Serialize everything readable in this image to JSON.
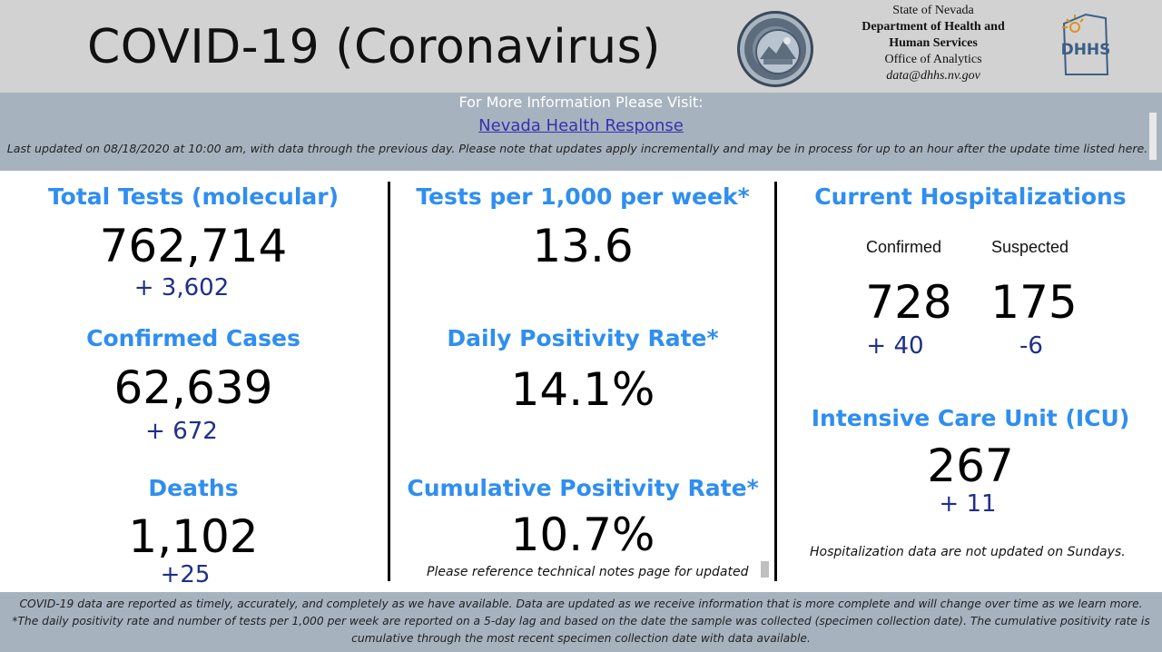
{
  "header": {
    "title": "COVID-19 (Coronavirus)",
    "org_lines": [
      "State of Nevada",
      "Department of Health and",
      "Human Services",
      "Office of Analytics",
      "data@dhhs.nv.gov"
    ]
  },
  "info": {
    "heading": "For More Information Please Visit:",
    "link_text": "Nevada Health Response",
    "update_note": "Last updated on 08/18/2020 at 10:00 am, with data through the previous day.  Please note that updates apply incrementally and may be in process for up to an hour after the update time listed here."
  },
  "metrics": {
    "total_tests": {
      "title": "Total Tests (molecular)",
      "value": "762,714",
      "change": "+  3,602"
    },
    "confirmed_cases": {
      "title": "Confirmed Cases",
      "value": "62,639",
      "change": "+ 672"
    },
    "deaths": {
      "title": "Deaths",
      "value": "1,102",
      "change": "+25"
    },
    "tests_per_1000": {
      "title": "Tests per 1,000 per week*",
      "value": "13.6"
    },
    "daily_positivity": {
      "title": "Daily Positivity Rate*",
      "value": "14.1%"
    },
    "cumulative_positivity": {
      "title": "Cumulative Positivity Rate*",
      "value": "10.7%",
      "note": "Please reference technical notes page for updated"
    },
    "hospitalizations": {
      "title": "Current Hospitalizations",
      "confirmed_label": "Confirmed",
      "suspected_label": "Suspected",
      "confirmed_value": "728",
      "suspected_value": "175",
      "confirmed_change": "+ 40",
      "suspected_change": "-6"
    },
    "icu": {
      "title": "Intensive Care Unit (ICU)",
      "value": "267",
      "change": "+  11"
    },
    "hospital_note": "Hospitalization data are not updated on Sundays."
  },
  "footer": {
    "lines": [
      "COVID-19 data are reported as timely, accurately, and completely as we have available.  Data are updated as we receive information that is more complete and will change over time as we learn more.",
      "*The daily positivity rate and number of tests per 1,000 per week are reported on a 5-day lag and based on the date the sample was collected (specimen collection date).  The cumulative positivity rate is",
      "cumulative through the most recent specimen collection date with data available."
    ]
  },
  "colors": {
    "header_bg": "#d2d2d2",
    "band_bg": "#a6b3bf",
    "title_blue": "#2f8ef0",
    "change_blue": "#1f2f8a",
    "link": "#3a2fb0"
  },
  "icons": {
    "seal": "nevada-state-seal-icon",
    "logo": "dhhs-logo-icon"
  }
}
